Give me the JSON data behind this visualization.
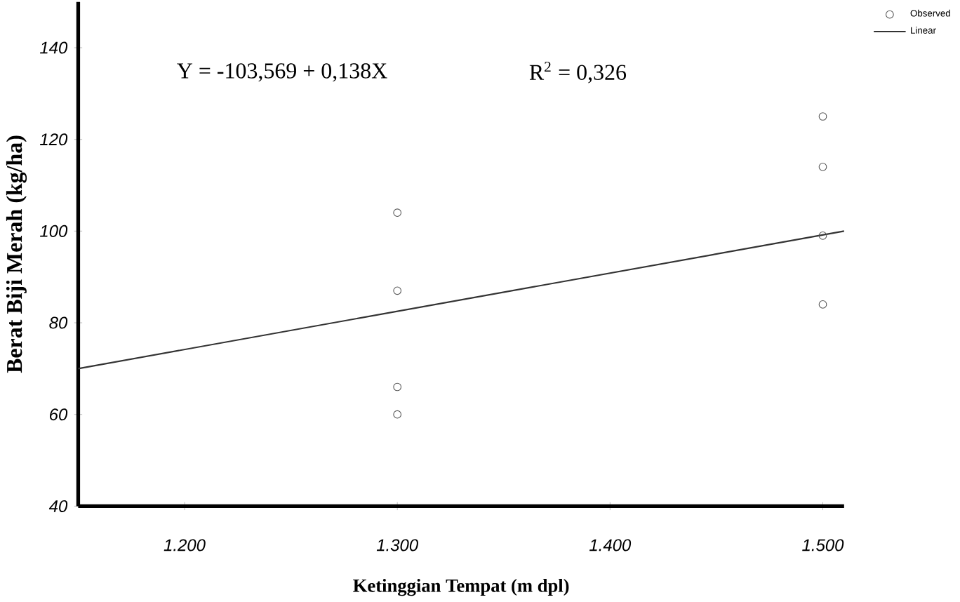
{
  "chart_data": {
    "type": "scatter",
    "xlabel": "Ketinggian Tempat (m dpl)",
    "ylabel": "Berat Biji Merah (kg/ha)",
    "annotations": [
      "Y = -103,569 + 0,138X",
      "R$^{2}$ = 0,326"
    ],
    "xlim": [
      1150,
      1510
    ],
    "ylim": [
      40,
      150
    ],
    "xticks": [
      {
        "value": 1200,
        "label": "1.200"
      },
      {
        "value": 1300,
        "label": "1.300"
      },
      {
        "value": 1400,
        "label": "1.400"
      },
      {
        "value": 1500,
        "label": "1.500"
      }
    ],
    "yticks": [
      40,
      60,
      80,
      100,
      120,
      140
    ],
    "legend": "top right",
    "grid": false,
    "series": [
      {
        "name": "Observed",
        "marker": "circle",
        "color": "#555555",
        "x": [
          1300,
          1300,
          1300,
          1300,
          1500,
          1500,
          1500,
          1500
        ],
        "values": [
          104,
          87,
          66,
          60,
          125,
          114,
          99,
          84
        ]
      },
      {
        "name": "Linear",
        "type": "line",
        "marker": "none",
        "color": "#333333",
        "x": [
          1150,
          1510
        ],
        "values": [
          70,
          100
        ]
      }
    ]
  }
}
